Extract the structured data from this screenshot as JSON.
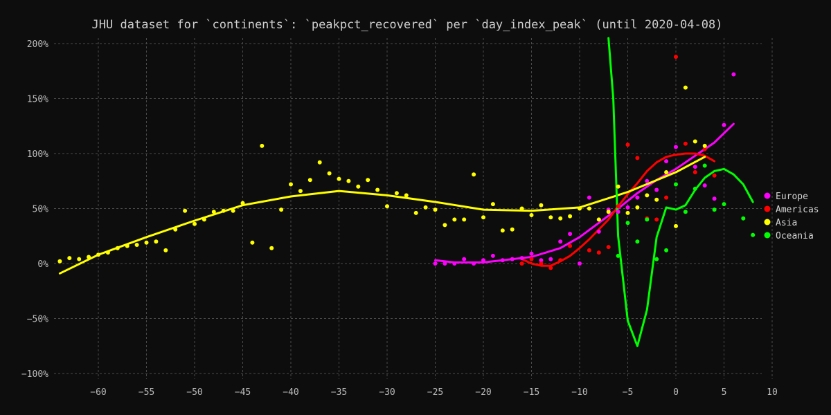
{
  "chart_data": {
    "type": "scatter",
    "title": "JHU dataset for `continents`: `peakpct_recovered` per `day_index_peak` (until 2020-04-08)",
    "xlabel": "",
    "ylabel": "",
    "xlim": [
      -64,
      10
    ],
    "ylim": [
      -100,
      200
    ],
    "x_ticks": [
      -60,
      -55,
      -50,
      -45,
      -40,
      -35,
      -30,
      -25,
      -20,
      -15,
      -10,
      -5,
      0,
      5,
      10
    ],
    "y_ticks": [
      -100,
      -50,
      0,
      50,
      100,
      150,
      200
    ],
    "y_tick_labels": [
      "−100%",
      "−50%",
      "0%",
      "50%",
      "100%",
      "150%",
      "200%"
    ],
    "grid": true,
    "legend_position": "right",
    "series": [
      {
        "name": "Europe",
        "color": "#ff00ff",
        "points": [
          [
            -25,
            0
          ],
          [
            -24,
            0
          ],
          [
            -23,
            0
          ],
          [
            -22,
            4
          ],
          [
            -21,
            0
          ],
          [
            -20,
            3
          ],
          [
            -19,
            7
          ],
          [
            -18,
            3
          ],
          [
            -17,
            4
          ],
          [
            -16,
            5
          ],
          [
            -15,
            9
          ],
          [
            -14,
            3
          ],
          [
            -13,
            4
          ],
          [
            -12,
            20
          ],
          [
            -11,
            27
          ],
          [
            -10,
            0
          ],
          [
            -9,
            60
          ],
          [
            -8,
            29
          ],
          [
            -7,
            49
          ],
          [
            -6,
            47
          ],
          [
            -5,
            51
          ],
          [
            -4,
            60
          ],
          [
            -3,
            75
          ],
          [
            -2,
            67
          ],
          [
            -1,
            93
          ],
          [
            0,
            106
          ],
          [
            2,
            88
          ],
          [
            3,
            71
          ],
          [
            4,
            59
          ],
          [
            5,
            126
          ],
          [
            6,
            172
          ]
        ],
        "trend": [
          [
            -25,
            3
          ],
          [
            -23,
            1
          ],
          [
            -20,
            1
          ],
          [
            -18,
            3
          ],
          [
            -15,
            6
          ],
          [
            -12,
            14
          ],
          [
            -10,
            24
          ],
          [
            -8,
            37
          ],
          [
            -6,
            50
          ],
          [
            -4,
            64
          ],
          [
            -2,
            76
          ],
          [
            0,
            86
          ],
          [
            2,
            98
          ],
          [
            4,
            110
          ],
          [
            6,
            127
          ]
        ]
      },
      {
        "name": "Americas",
        "color": "#ff0000",
        "points": [
          [
            -16,
            0
          ],
          [
            -15,
            4
          ],
          [
            -14,
            0
          ],
          [
            -13,
            -4
          ],
          [
            -12,
            3
          ],
          [
            -11,
            16
          ],
          [
            -9,
            12
          ],
          [
            -8,
            10
          ],
          [
            -7,
            15
          ],
          [
            -6,
            52
          ],
          [
            -5,
            108
          ],
          [
            -4,
            96
          ],
          [
            -3,
            41
          ],
          [
            -2,
            40
          ],
          [
            -1,
            60
          ],
          [
            0,
            188
          ],
          [
            1,
            109
          ],
          [
            2,
            83
          ],
          [
            3,
            104
          ],
          [
            4,
            80
          ]
        ],
        "trend": [
          [
            -16,
            4
          ],
          [
            -15,
            0
          ],
          [
            -14,
            -2
          ],
          [
            -13,
            -2
          ],
          [
            -12,
            2
          ],
          [
            -11,
            7
          ],
          [
            -10,
            14
          ],
          [
            -9,
            22
          ],
          [
            -8,
            31
          ],
          [
            -7,
            40
          ],
          [
            -6,
            52
          ],
          [
            -5,
            63
          ],
          [
            -4,
            73
          ],
          [
            -3,
            84
          ],
          [
            -2,
            92
          ],
          [
            -1,
            97
          ],
          [
            0,
            99
          ],
          [
            1,
            100
          ],
          [
            2,
            100
          ],
          [
            3,
            98
          ],
          [
            4,
            93
          ]
        ]
      },
      {
        "name": "Asia",
        "color": "#ffff00",
        "points": [
          [
            -64,
            2
          ],
          [
            -63,
            5
          ],
          [
            -62,
            4
          ],
          [
            -61,
            6
          ],
          [
            -60,
            8
          ],
          [
            -59,
            10
          ],
          [
            -58,
            14
          ],
          [
            -57,
            16
          ],
          [
            -56,
            17
          ],
          [
            -55,
            19
          ],
          [
            -54,
            20
          ],
          [
            -53,
            12
          ],
          [
            -52,
            31
          ],
          [
            -51,
            48
          ],
          [
            -50,
            36
          ],
          [
            -49,
            40
          ],
          [
            -48,
            47
          ],
          [
            -47,
            48
          ],
          [
            -46,
            48
          ],
          [
            -45,
            55
          ],
          [
            -44,
            19
          ],
          [
            -43,
            107
          ],
          [
            -42,
            14
          ],
          [
            -41,
            49
          ],
          [
            -40,
            72
          ],
          [
            -39,
            66
          ],
          [
            -38,
            76
          ],
          [
            -37,
            92
          ],
          [
            -36,
            82
          ],
          [
            -35,
            77
          ],
          [
            -34,
            75
          ],
          [
            -33,
            70
          ],
          [
            -32,
            76
          ],
          [
            -31,
            67
          ],
          [
            -30,
            52
          ],
          [
            -29,
            64
          ],
          [
            -28,
            62
          ],
          [
            -27,
            46
          ],
          [
            -26,
            51
          ],
          [
            -25,
            49
          ],
          [
            -24,
            35
          ],
          [
            -23,
            40
          ],
          [
            -22,
            40
          ],
          [
            -21,
            81
          ],
          [
            -20,
            42
          ],
          [
            -19,
            54
          ],
          [
            -18,
            30
          ],
          [
            -17,
            31
          ],
          [
            -16,
            50
          ],
          [
            -15,
            44
          ],
          [
            -14,
            53
          ],
          [
            -13,
            42
          ],
          [
            -12,
            41
          ],
          [
            -11,
            43
          ],
          [
            -10,
            50
          ],
          [
            -9,
            50
          ],
          [
            -8,
            40
          ],
          [
            -7,
            47
          ],
          [
            -6,
            70
          ],
          [
            -5,
            46
          ],
          [
            -4,
            51
          ],
          [
            -3,
            62
          ],
          [
            -2,
            58
          ],
          [
            -1,
            83
          ],
          [
            0,
            34
          ],
          [
            1,
            160
          ],
          [
            2,
            111
          ],
          [
            3,
            107
          ]
        ],
        "trend": [
          [
            -64,
            -9
          ],
          [
            -60,
            8
          ],
          [
            -55,
            24
          ],
          [
            -50,
            39
          ],
          [
            -45,
            53
          ],
          [
            -40,
            61
          ],
          [
            -35,
            66
          ],
          [
            -30,
            62
          ],
          [
            -25,
            56
          ],
          [
            -20,
            49
          ],
          [
            -15,
            48
          ],
          [
            -10,
            51
          ],
          [
            -5,
            65
          ],
          [
            0,
            83
          ],
          [
            3,
            97
          ]
        ]
      },
      {
        "name": "Oceania",
        "color": "#00ff00",
        "points": [
          [
            -6,
            7
          ],
          [
            -5,
            37
          ],
          [
            -4,
            20
          ],
          [
            -3,
            40
          ],
          [
            -2,
            4
          ],
          [
            -1,
            12
          ],
          [
            0,
            72
          ],
          [
            1,
            47
          ],
          [
            2,
            68
          ],
          [
            3,
            89
          ],
          [
            4,
            49
          ],
          [
            5,
            54
          ],
          [
            7,
            41
          ],
          [
            8,
            26
          ]
        ],
        "trend": [
          [
            -7,
            205
          ],
          [
            -6.5,
            150
          ],
          [
            -6,
            25
          ],
          [
            -5,
            -52
          ],
          [
            -4,
            -75
          ],
          [
            -3,
            -42
          ],
          [
            -2,
            24
          ],
          [
            -1,
            51
          ],
          [
            0,
            49
          ],
          [
            1,
            53
          ],
          [
            2,
            67
          ],
          [
            3,
            78
          ],
          [
            4,
            84
          ],
          [
            5,
            86
          ],
          [
            6,
            81
          ],
          [
            7,
            72
          ],
          [
            8,
            56
          ]
        ]
      }
    ]
  }
}
